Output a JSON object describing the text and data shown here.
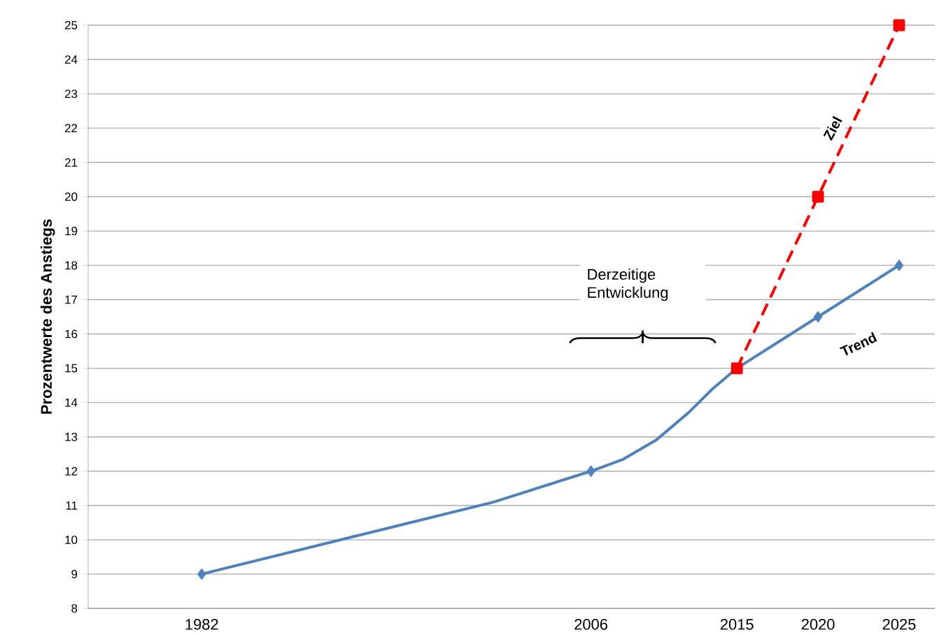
{
  "chart_data": {
    "type": "line",
    "ylabel": "Prozentwerte des Anstiegs",
    "xlim": [
      1975,
      2027.2
    ],
    "xticks": [
      1982,
      2006,
      2015,
      2020,
      2025
    ],
    "ylim": [
      8,
      25
    ],
    "yticks": [
      8,
      9,
      10,
      11,
      12,
      13,
      14,
      15,
      16,
      17,
      18,
      19,
      20,
      21,
      22,
      23,
      24,
      25
    ],
    "grid": "y",
    "series": [
      {
        "color": "#4f81bd",
        "marker": "none",
        "line_style": "solid",
        "x": [
          1982,
          1994,
          2000,
          2006,
          2008,
          2010,
          2012,
          2013.5,
          2015,
          2020,
          2025
        ],
        "values": [
          9,
          10.4,
          11.1,
          12,
          12.35,
          12.9,
          13.7,
          14.4,
          15,
          16.5,
          18
        ]
      },
      {
        "type": "scatter",
        "color": "#4f81bd",
        "marker": "diamond",
        "x": [
          1982,
          2006,
          2020,
          2025
        ],
        "values": [
          9,
          12,
          16.5,
          18
        ]
      },
      {
        "type": "line",
        "color": "#ff0000",
        "marker": "square",
        "line_style": "dashed",
        "x": [
          2015,
          2020,
          2025
        ],
        "values": [
          15,
          20,
          25
        ]
      }
    ],
    "annotations": [
      "Derzeitige Entwicklung",
      {
        "text": "Ziel",
        "x": 2020.9,
        "y": 22
      },
      {
        "text": "Trend",
        "x": 2022.5,
        "y": 15.7
      }
    ]
  }
}
